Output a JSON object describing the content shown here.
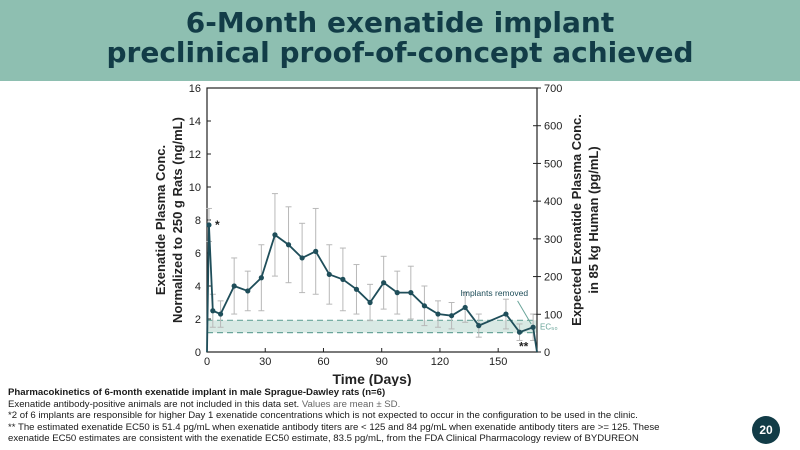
{
  "slide": {
    "title_line1": "6-Month exenatide implant",
    "title_line2": "preclinical proof-of-concept achieved",
    "page_number": "20"
  },
  "caption": {
    "heading": "Pharmacokinetics of 6-month exenatide implant in male Sprague-Dawley rats (n=6)",
    "line2_a": "Exenatide antibody-positive animals are not included in this data set.",
    "line2_b": " Values are mean ± SD.",
    "line3": "*2 of 6 implants are responsible for higher Day 1 exenatide concentrations which is not expected to occur in the configuration to be used in the clinic.",
    "line4": "** The estimated exenatide EC50 is 51.4 pg/mL when exenatide antibody titers are < 125 and 84 pg/mL when exenatide antibody titers are >= 125. These",
    "line5": "exenatide EC50 estimates are consistent with the exenatide EC50 estimate, 83.5 pg/mL, from the FDA Clinical Pharmacology review of BYDUREON"
  },
  "chart_data": {
    "type": "line",
    "xlabel": "Time (Days)",
    "ylabel_left_line1": "Exenatide Plasma Conc.",
    "ylabel_left_line2": "Normalized to 250 g Rats (ng/mL)",
    "ylabel_right_line1": "Expected Exenatide Plasma Conc.",
    "ylabel_right_line2": "in 85 kg Human (pg/mL)",
    "xlim": [
      0,
      170
    ],
    "ylim_left": [
      0,
      16
    ],
    "ylim_right": [
      0,
      700
    ],
    "x_ticks": [
      0,
      30,
      60,
      90,
      120,
      150
    ],
    "y_left_ticks": [
      0,
      2,
      4,
      6,
      8,
      10,
      12,
      14,
      16
    ],
    "y_right_ticks": [
      0,
      100,
      200,
      300,
      400,
      500,
      600,
      700
    ],
    "series": [
      {
        "name": "Exenatide plasma concentration",
        "color": "#1f4e5a",
        "x": [
          1,
          3,
          7,
          14,
          21,
          28,
          35,
          42,
          49,
          56,
          63,
          70,
          77,
          84,
          91,
          98,
          105,
          112,
          119,
          126,
          133,
          140,
          154,
          161,
          168
        ],
        "y": [
          7.7,
          2.5,
          2.3,
          4.0,
          3.7,
          4.5,
          7.1,
          6.5,
          5.7,
          6.1,
          4.7,
          4.4,
          3.8,
          3.0,
          4.2,
          3.6,
          3.6,
          2.8,
          2.3,
          2.2,
          2.7,
          1.6,
          2.3,
          1.2,
          1.5
        ],
        "err": [
          1.0,
          1.0,
          0.8,
          1.7,
          1.2,
          2.0,
          2.5,
          2.3,
          2.1,
          2.6,
          1.8,
          1.9,
          1.5,
          1.1,
          1.6,
          1.3,
          1.6,
          1.2,
          0.8,
          0.8,
          0.9,
          0.7,
          0.9,
          0.5,
          0.8
        ]
      }
    ],
    "ec50_band": {
      "label": "EC₅₀",
      "range_pg_ml": [
        51.4,
        84
      ],
      "color": "#8ebfb1"
    },
    "annotations": {
      "implants_removed": "Implants removed",
      "star": "*",
      "double_star": "**"
    }
  }
}
